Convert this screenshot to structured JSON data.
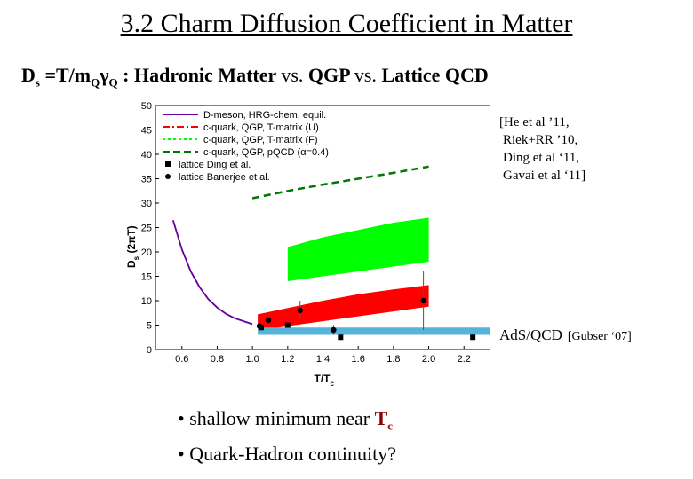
{
  "slide": {
    "title": "3.2 Charm Diffusion Coefficient in Matter",
    "subtitle": {
      "ds": "D",
      "ds_sub": "s",
      "formula_mid": " =T/m",
      "sub_q1": "Q",
      "gamma": "γ",
      "sub_q2": "Q",
      "hadronic": " : Hadronic Matter ",
      "vs1": "vs.",
      "qgp": " QGP ",
      "vs2": "vs.",
      "lattice": " Lattice QCD"
    },
    "references": [
      "[He et al ’11,",
      "Riek+RR ’10,",
      "Ding et al ‘11,",
      "Gavai et al ‘11]"
    ],
    "ads": {
      "label": "AdS/QCD",
      "ref": "[Gubser ‘07]"
    },
    "bullets": {
      "b1_text": "• shallow minimum near ",
      "b1_t": "T",
      "b1_sub": "c",
      "b2_text": "• Quark-Hadron continuity?"
    }
  },
  "chart_data": {
    "type": "line",
    "xlabel": "T/T",
    "xlabel_sub": "c",
    "ylabel": "D (2πT)",
    "ylabel_sub": "s",
    "xlim": [
      0.45,
      2.35
    ],
    "ylim": [
      0,
      50
    ],
    "xticks": [
      0.6,
      0.8,
      1.0,
      1.2,
      1.4,
      1.6,
      1.8,
      2.0,
      2.2
    ],
    "xtick_labels": [
      "0.6",
      "0.8",
      "1.0",
      "1.2",
      "1.4",
      "1.6",
      "1.8",
      "2.0",
      "2.2"
    ],
    "yticks": [
      0,
      5,
      10,
      15,
      20,
      25,
      30,
      35,
      40,
      45,
      50
    ],
    "ytick_labels": [
      "0",
      "5",
      "10",
      "15",
      "20",
      "25",
      "30",
      "35",
      "40",
      "45",
      "50"
    ],
    "series": [
      {
        "name": "D-meson, HRG-chem. equil.",
        "kind": "line",
        "color": "#660099",
        "x": [
          0.55,
          0.6,
          0.65,
          0.7,
          0.75,
          0.8,
          0.85,
          0.9,
          0.95,
          1.0
        ],
        "y": [
          26.5,
          20.5,
          16,
          12.8,
          10.3,
          8.6,
          7.3,
          6.4,
          5.8,
          5.2
        ]
      },
      {
        "name": "c-quark, QGP, T-matrix (U)",
        "kind": "band",
        "color": "#ff0000",
        "x": [
          1.03,
          1.2,
          1.4,
          1.6,
          1.8,
          2.0
        ],
        "y_low": [
          3.8,
          4.8,
          5.8,
          6.8,
          7.8,
          8.8
        ],
        "y_high": [
          7.2,
          8.5,
          10.0,
          11.3,
          12.3,
          13.2
        ]
      },
      {
        "name": "c-quark, QGP, T-matrix (F)",
        "kind": "band",
        "color": "#00ff00",
        "x": [
          1.2,
          1.4,
          1.6,
          1.8,
          2.0
        ],
        "y_low": [
          14.0,
          15.0,
          16.0,
          17.0,
          18.0
        ],
        "y_high": [
          21.0,
          23.0,
          24.5,
          26.0,
          27.0
        ]
      },
      {
        "name": "c-quark, QGP, pQCD (α=0.4)",
        "kind": "dashed",
        "color": "#007700",
        "x": [
          1.0,
          1.2,
          1.4,
          1.6,
          1.8,
          2.0
        ],
        "y": [
          31.0,
          32.5,
          33.8,
          35.0,
          36.2,
          37.5
        ]
      },
      {
        "name": "AdS/QCD",
        "kind": "hband",
        "color": "#55b4d8",
        "x": [
          1.03,
          2.35
        ],
        "y_low": [
          3.0
        ],
        "y_high": [
          4.5
        ]
      },
      {
        "name": "lattice Ding et al.",
        "kind": "points",
        "marker": "square",
        "x": [
          1.05,
          1.2,
          1.5,
          2.25
        ],
        "y": [
          4.5,
          5.0,
          2.5,
          2.5
        ],
        "err": [
          0,
          0,
          0,
          0
        ]
      },
      {
        "name": "lattice Banerjee et al.",
        "kind": "points",
        "marker": "circle",
        "x": [
          1.04,
          1.09,
          1.27,
          1.46,
          1.97
        ],
        "y": [
          4.8,
          6.0,
          8.0,
          4.0,
          10.0
        ],
        "err": [
          0,
          0,
          2.0,
          1.0,
          6.0
        ]
      }
    ],
    "legend_position": "top-left"
  }
}
